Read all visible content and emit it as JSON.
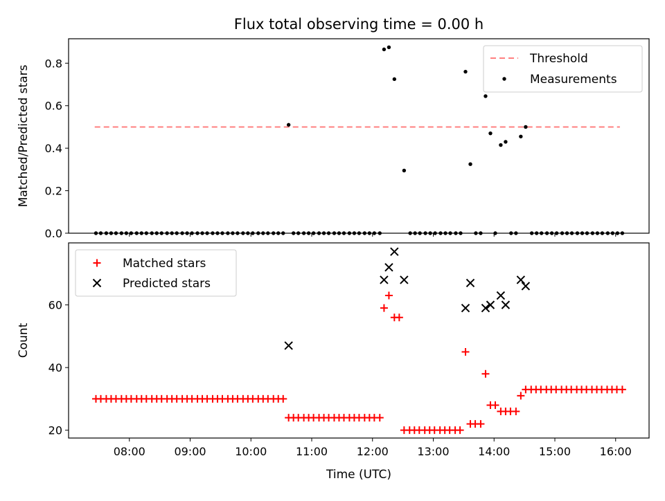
{
  "figure": {
    "title": "Flux total observing time = 0.00 h"
  },
  "colors": {
    "threshold": "#ff7f7f",
    "measurement": "#000000",
    "matched": "#ff0000",
    "predicted": "#000000"
  },
  "chart_data": [
    {
      "type": "scatter",
      "title": "Flux total observing time = 0.00 h",
      "ylabel": "Matched/Predicted stars",
      "xlabel": "",
      "x_unit": "hours (UTC)",
      "xlim": [
        7.0,
        16.55
      ],
      "ylim": [
        0.0,
        0.915
      ],
      "yticks": [
        0.0,
        0.2,
        0.4,
        0.6,
        0.8
      ],
      "ytick_labels": [
        "0.0",
        "0.2",
        "0.4",
        "0.6",
        "0.8"
      ],
      "grid": false,
      "legend": {
        "placement": "top-right",
        "entries": [
          "Threshold",
          "Measurements"
        ]
      },
      "threshold": {
        "name": "Threshold",
        "y": 0.5,
        "x_range": [
          7.43,
          16.07
        ]
      },
      "series": [
        {
          "name": "Measurements",
          "points": [
            [
              7.45,
              0
            ],
            [
              7.53,
              0
            ],
            [
              7.62,
              0
            ],
            [
              7.7,
              0
            ],
            [
              7.78,
              0
            ],
            [
              7.87,
              0
            ],
            [
              7.95,
              0
            ],
            [
              8.03,
              0
            ],
            [
              8.12,
              0
            ],
            [
              8.2,
              0
            ],
            [
              8.28,
              0
            ],
            [
              8.37,
              0
            ],
            [
              8.45,
              0
            ],
            [
              8.53,
              0
            ],
            [
              8.62,
              0
            ],
            [
              8.7,
              0
            ],
            [
              8.78,
              0
            ],
            [
              8.87,
              0
            ],
            [
              8.95,
              0
            ],
            [
              9.03,
              0
            ],
            [
              9.12,
              0
            ],
            [
              9.2,
              0
            ],
            [
              9.28,
              0
            ],
            [
              9.37,
              0
            ],
            [
              9.45,
              0
            ],
            [
              9.53,
              0
            ],
            [
              9.62,
              0
            ],
            [
              9.7,
              0
            ],
            [
              9.78,
              0
            ],
            [
              9.87,
              0
            ],
            [
              9.95,
              0
            ],
            [
              10.03,
              0
            ],
            [
              10.12,
              0
            ],
            [
              10.2,
              0
            ],
            [
              10.28,
              0
            ],
            [
              10.37,
              0
            ],
            [
              10.45,
              0
            ],
            [
              10.53,
              0
            ],
            [
              10.62,
              0.51
            ],
            [
              10.7,
              0
            ],
            [
              10.78,
              0
            ],
            [
              10.87,
              0
            ],
            [
              10.95,
              0
            ],
            [
              11.03,
              0
            ],
            [
              11.12,
              0
            ],
            [
              11.2,
              0
            ],
            [
              11.28,
              0
            ],
            [
              11.37,
              0
            ],
            [
              11.45,
              0
            ],
            [
              11.53,
              0
            ],
            [
              11.62,
              0
            ],
            [
              11.7,
              0
            ],
            [
              11.78,
              0
            ],
            [
              11.87,
              0
            ],
            [
              11.95,
              0
            ],
            [
              12.03,
              0
            ],
            [
              12.12,
              0
            ],
            [
              12.19,
              0.865
            ],
            [
              12.27,
              0.875
            ],
            [
              12.36,
              0.725
            ],
            [
              12.52,
              0.295
            ],
            [
              12.62,
              0
            ],
            [
              12.7,
              0
            ],
            [
              12.78,
              0
            ],
            [
              12.87,
              0
            ],
            [
              12.95,
              0
            ],
            [
              13.03,
              0
            ],
            [
              13.12,
              0
            ],
            [
              13.2,
              0
            ],
            [
              13.28,
              0
            ],
            [
              13.37,
              0
            ],
            [
              13.45,
              0
            ],
            [
              13.53,
              0.76
            ],
            [
              13.61,
              0.325
            ],
            [
              13.7,
              0
            ],
            [
              13.78,
              0
            ],
            [
              13.86,
              0.645
            ],
            [
              13.94,
              0.47
            ],
            [
              14.02,
              0
            ],
            [
              14.11,
              0.415
            ],
            [
              14.19,
              0.43
            ],
            [
              14.28,
              0
            ],
            [
              14.36,
              0
            ],
            [
              14.44,
              0.455
            ],
            [
              14.52,
              0.5
            ],
            [
              14.62,
              0
            ],
            [
              14.7,
              0
            ],
            [
              14.78,
              0
            ],
            [
              14.87,
              0
            ],
            [
              14.95,
              0
            ],
            [
              15.03,
              0
            ],
            [
              15.12,
              0
            ],
            [
              15.2,
              0
            ],
            [
              15.28,
              0
            ],
            [
              15.37,
              0
            ],
            [
              15.45,
              0
            ],
            [
              15.53,
              0
            ],
            [
              15.62,
              0
            ],
            [
              15.7,
              0
            ],
            [
              15.78,
              0
            ],
            [
              15.87,
              0
            ],
            [
              15.95,
              0
            ],
            [
              16.03,
              0
            ],
            [
              16.11,
              0
            ]
          ]
        }
      ]
    },
    {
      "type": "scatter",
      "title": "",
      "ylabel": "Count",
      "xlabel": "Time (UTC)",
      "x_unit": "hours (UTC)",
      "xlim": [
        7.0,
        16.55
      ],
      "ylim": [
        17.5,
        79.8
      ],
      "xticks": [
        8,
        9,
        10,
        11,
        12,
        13,
        14,
        15,
        16
      ],
      "xtick_labels": [
        "08:00",
        "09:00",
        "10:00",
        "11:00",
        "12:00",
        "13:00",
        "14:00",
        "15:00",
        "16:00"
      ],
      "yticks": [
        20,
        40,
        60
      ],
      "ytick_labels": [
        "20",
        "40",
        "60"
      ],
      "grid": false,
      "legend": {
        "placement": "top-left",
        "entries": [
          "Matched stars",
          "Predicted stars"
        ]
      },
      "series": [
        {
          "name": "Matched stars",
          "points": [
            [
              7.45,
              30
            ],
            [
              7.53,
              30
            ],
            [
              7.62,
              30
            ],
            [
              7.7,
              30
            ],
            [
              7.78,
              30
            ],
            [
              7.87,
              30
            ],
            [
              7.95,
              30
            ],
            [
              8.03,
              30
            ],
            [
              8.12,
              30
            ],
            [
              8.2,
              30
            ],
            [
              8.28,
              30
            ],
            [
              8.37,
              30
            ],
            [
              8.45,
              30
            ],
            [
              8.53,
              30
            ],
            [
              8.62,
              30
            ],
            [
              8.7,
              30
            ],
            [
              8.78,
              30
            ],
            [
              8.87,
              30
            ],
            [
              8.95,
              30
            ],
            [
              9.03,
              30
            ],
            [
              9.12,
              30
            ],
            [
              9.2,
              30
            ],
            [
              9.28,
              30
            ],
            [
              9.37,
              30
            ],
            [
              9.45,
              30
            ],
            [
              9.53,
              30
            ],
            [
              9.62,
              30
            ],
            [
              9.7,
              30
            ],
            [
              9.78,
              30
            ],
            [
              9.87,
              30
            ],
            [
              9.95,
              30
            ],
            [
              10.03,
              30
            ],
            [
              10.12,
              30
            ],
            [
              10.2,
              30
            ],
            [
              10.28,
              30
            ],
            [
              10.37,
              30
            ],
            [
              10.45,
              30
            ],
            [
              10.53,
              30
            ],
            [
              10.62,
              24
            ],
            [
              10.7,
              24
            ],
            [
              10.78,
              24
            ],
            [
              10.87,
              24
            ],
            [
              10.95,
              24
            ],
            [
              11.03,
              24
            ],
            [
              11.12,
              24
            ],
            [
              11.2,
              24
            ],
            [
              11.28,
              24
            ],
            [
              11.37,
              24
            ],
            [
              11.45,
              24
            ],
            [
              11.53,
              24
            ],
            [
              11.62,
              24
            ],
            [
              11.7,
              24
            ],
            [
              11.78,
              24
            ],
            [
              11.87,
              24
            ],
            [
              11.95,
              24
            ],
            [
              12.03,
              24
            ],
            [
              12.12,
              24
            ],
            [
              12.19,
              59
            ],
            [
              12.27,
              63
            ],
            [
              12.36,
              56
            ],
            [
              12.44,
              56
            ],
            [
              12.52,
              20
            ],
            [
              12.61,
              20
            ],
            [
              12.69,
              20
            ],
            [
              12.77,
              20
            ],
            [
              12.86,
              20
            ],
            [
              12.94,
              20
            ],
            [
              13.02,
              20
            ],
            [
              13.11,
              20
            ],
            [
              13.19,
              20
            ],
            [
              13.27,
              20
            ],
            [
              13.36,
              20
            ],
            [
              13.44,
              20
            ],
            [
              13.53,
              45
            ],
            [
              13.61,
              22
            ],
            [
              13.69,
              22
            ],
            [
              13.78,
              22
            ],
            [
              13.86,
              38
            ],
            [
              13.94,
              28
            ],
            [
              14.02,
              28
            ],
            [
              14.11,
              26
            ],
            [
              14.19,
              26
            ],
            [
              14.27,
              26
            ],
            [
              14.36,
              26
            ],
            [
              14.44,
              31
            ],
            [
              14.52,
              33
            ],
            [
              14.61,
              33
            ],
            [
              14.69,
              33
            ],
            [
              14.77,
              33
            ],
            [
              14.86,
              33
            ],
            [
              14.94,
              33
            ],
            [
              15.02,
              33
            ],
            [
              15.11,
              33
            ],
            [
              15.19,
              33
            ],
            [
              15.27,
              33
            ],
            [
              15.36,
              33
            ],
            [
              15.44,
              33
            ],
            [
              15.52,
              33
            ],
            [
              15.61,
              33
            ],
            [
              15.69,
              33
            ],
            [
              15.77,
              33
            ],
            [
              15.86,
              33
            ],
            [
              15.94,
              33
            ],
            [
              16.02,
              33
            ],
            [
              16.11,
              33
            ]
          ]
        },
        {
          "name": "Predicted stars",
          "points": [
            [
              10.62,
              47
            ],
            [
              12.19,
              68
            ],
            [
              12.27,
              72
            ],
            [
              12.36,
              77
            ],
            [
              12.52,
              68
            ],
            [
              13.53,
              59
            ],
            [
              13.61,
              67
            ],
            [
              13.86,
              59
            ],
            [
              13.94,
              60
            ],
            [
              14.11,
              63
            ],
            [
              14.19,
              60
            ],
            [
              14.44,
              68
            ],
            [
              14.52,
              66
            ]
          ]
        }
      ]
    }
  ]
}
